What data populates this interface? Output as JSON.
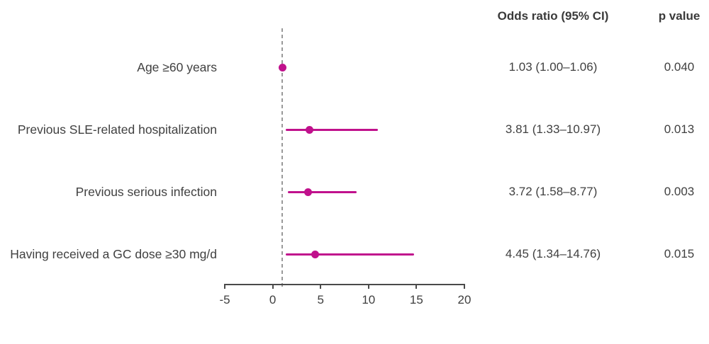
{
  "header": {
    "or_col": "Odds ratio (95% CI)",
    "p_col": "p value"
  },
  "colors": {
    "accent": "#C0118C",
    "text": "#404040",
    "axis": "#4A4A4A",
    "reference_line": "#999999"
  },
  "chart_data": {
    "type": "scatter",
    "subtype": "forest-plot",
    "title": "",
    "xlabel": "",
    "ylabel": "",
    "xlim": [
      -5,
      20
    ],
    "x_ticks": [
      -5,
      0,
      5,
      10,
      15,
      20
    ],
    "reference_line_x": 1,
    "grid": false,
    "legend": false,
    "rows": [
      {
        "label": "Age ≥60 years",
        "or": 1.03,
        "ci_low": 1.0,
        "ci_high": 1.06,
        "or_text": "1.03 (1.00–1.06)",
        "p_text": "0.040"
      },
      {
        "label": "Previous SLE-related hospitalization",
        "or": 3.81,
        "ci_low": 1.33,
        "ci_high": 10.97,
        "or_text": "3.81 (1.33–10.97)",
        "p_text": "0.013"
      },
      {
        "label": "Previous serious infection",
        "or": 3.72,
        "ci_low": 1.58,
        "ci_high": 8.77,
        "or_text": "3.72 (1.58–8.77)",
        "p_text": "0.003"
      },
      {
        "label": "Having received a GC dose ≥30 mg/d",
        "or": 4.45,
        "ci_low": 1.34,
        "ci_high": 14.76,
        "or_text": "4.45 (1.34–14.76)",
        "p_text": "0.015"
      }
    ]
  }
}
